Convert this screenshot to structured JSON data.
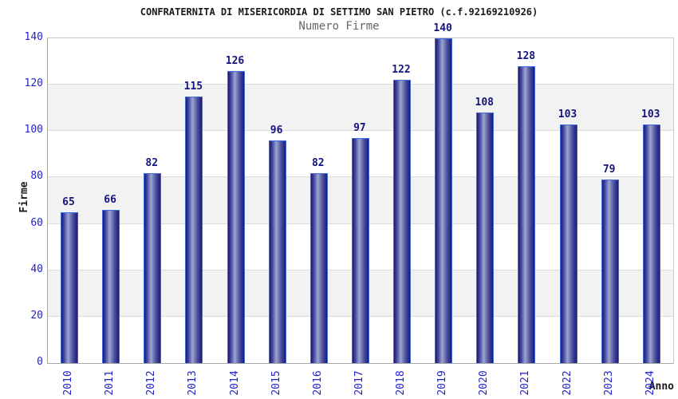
{
  "chart_data": {
    "type": "bar",
    "title": "CONFRATERNITA DI MISERICORDIA DI SETTIMO SAN PIETRO (c.f.92169210926)",
    "subtitle": "Numero Firme",
    "xlabel": "Anno",
    "ylabel": "Firme",
    "categories": [
      "2010",
      "2011",
      "2012",
      "2013",
      "2014",
      "2015",
      "2016",
      "2017",
      "2018",
      "2019",
      "2020",
      "2021",
      "2022",
      "2023",
      "2024"
    ],
    "values": [
      65,
      66,
      82,
      115,
      126,
      96,
      82,
      97,
      122,
      140,
      108,
      128,
      103,
      79,
      103
    ],
    "ylim": [
      0,
      140
    ],
    "yticks": [
      0,
      20,
      40,
      60,
      80,
      100,
      120,
      140
    ],
    "grid": true,
    "alternating_bands": true,
    "legend": "none",
    "colors": {
      "tick_label_blue": "#2323cc",
      "value_label_navy": "#14147e",
      "bar_border_blue": "#3f6ae0",
      "bar_edge_navy": "#1a1a7c",
      "bar_center_light": "#9da5d2",
      "band_gray": "#f2f2f2",
      "gridline_gray": "#dcdcdc",
      "title_dark": "#1a1a1a",
      "subtitle_gray": "#666666"
    }
  }
}
